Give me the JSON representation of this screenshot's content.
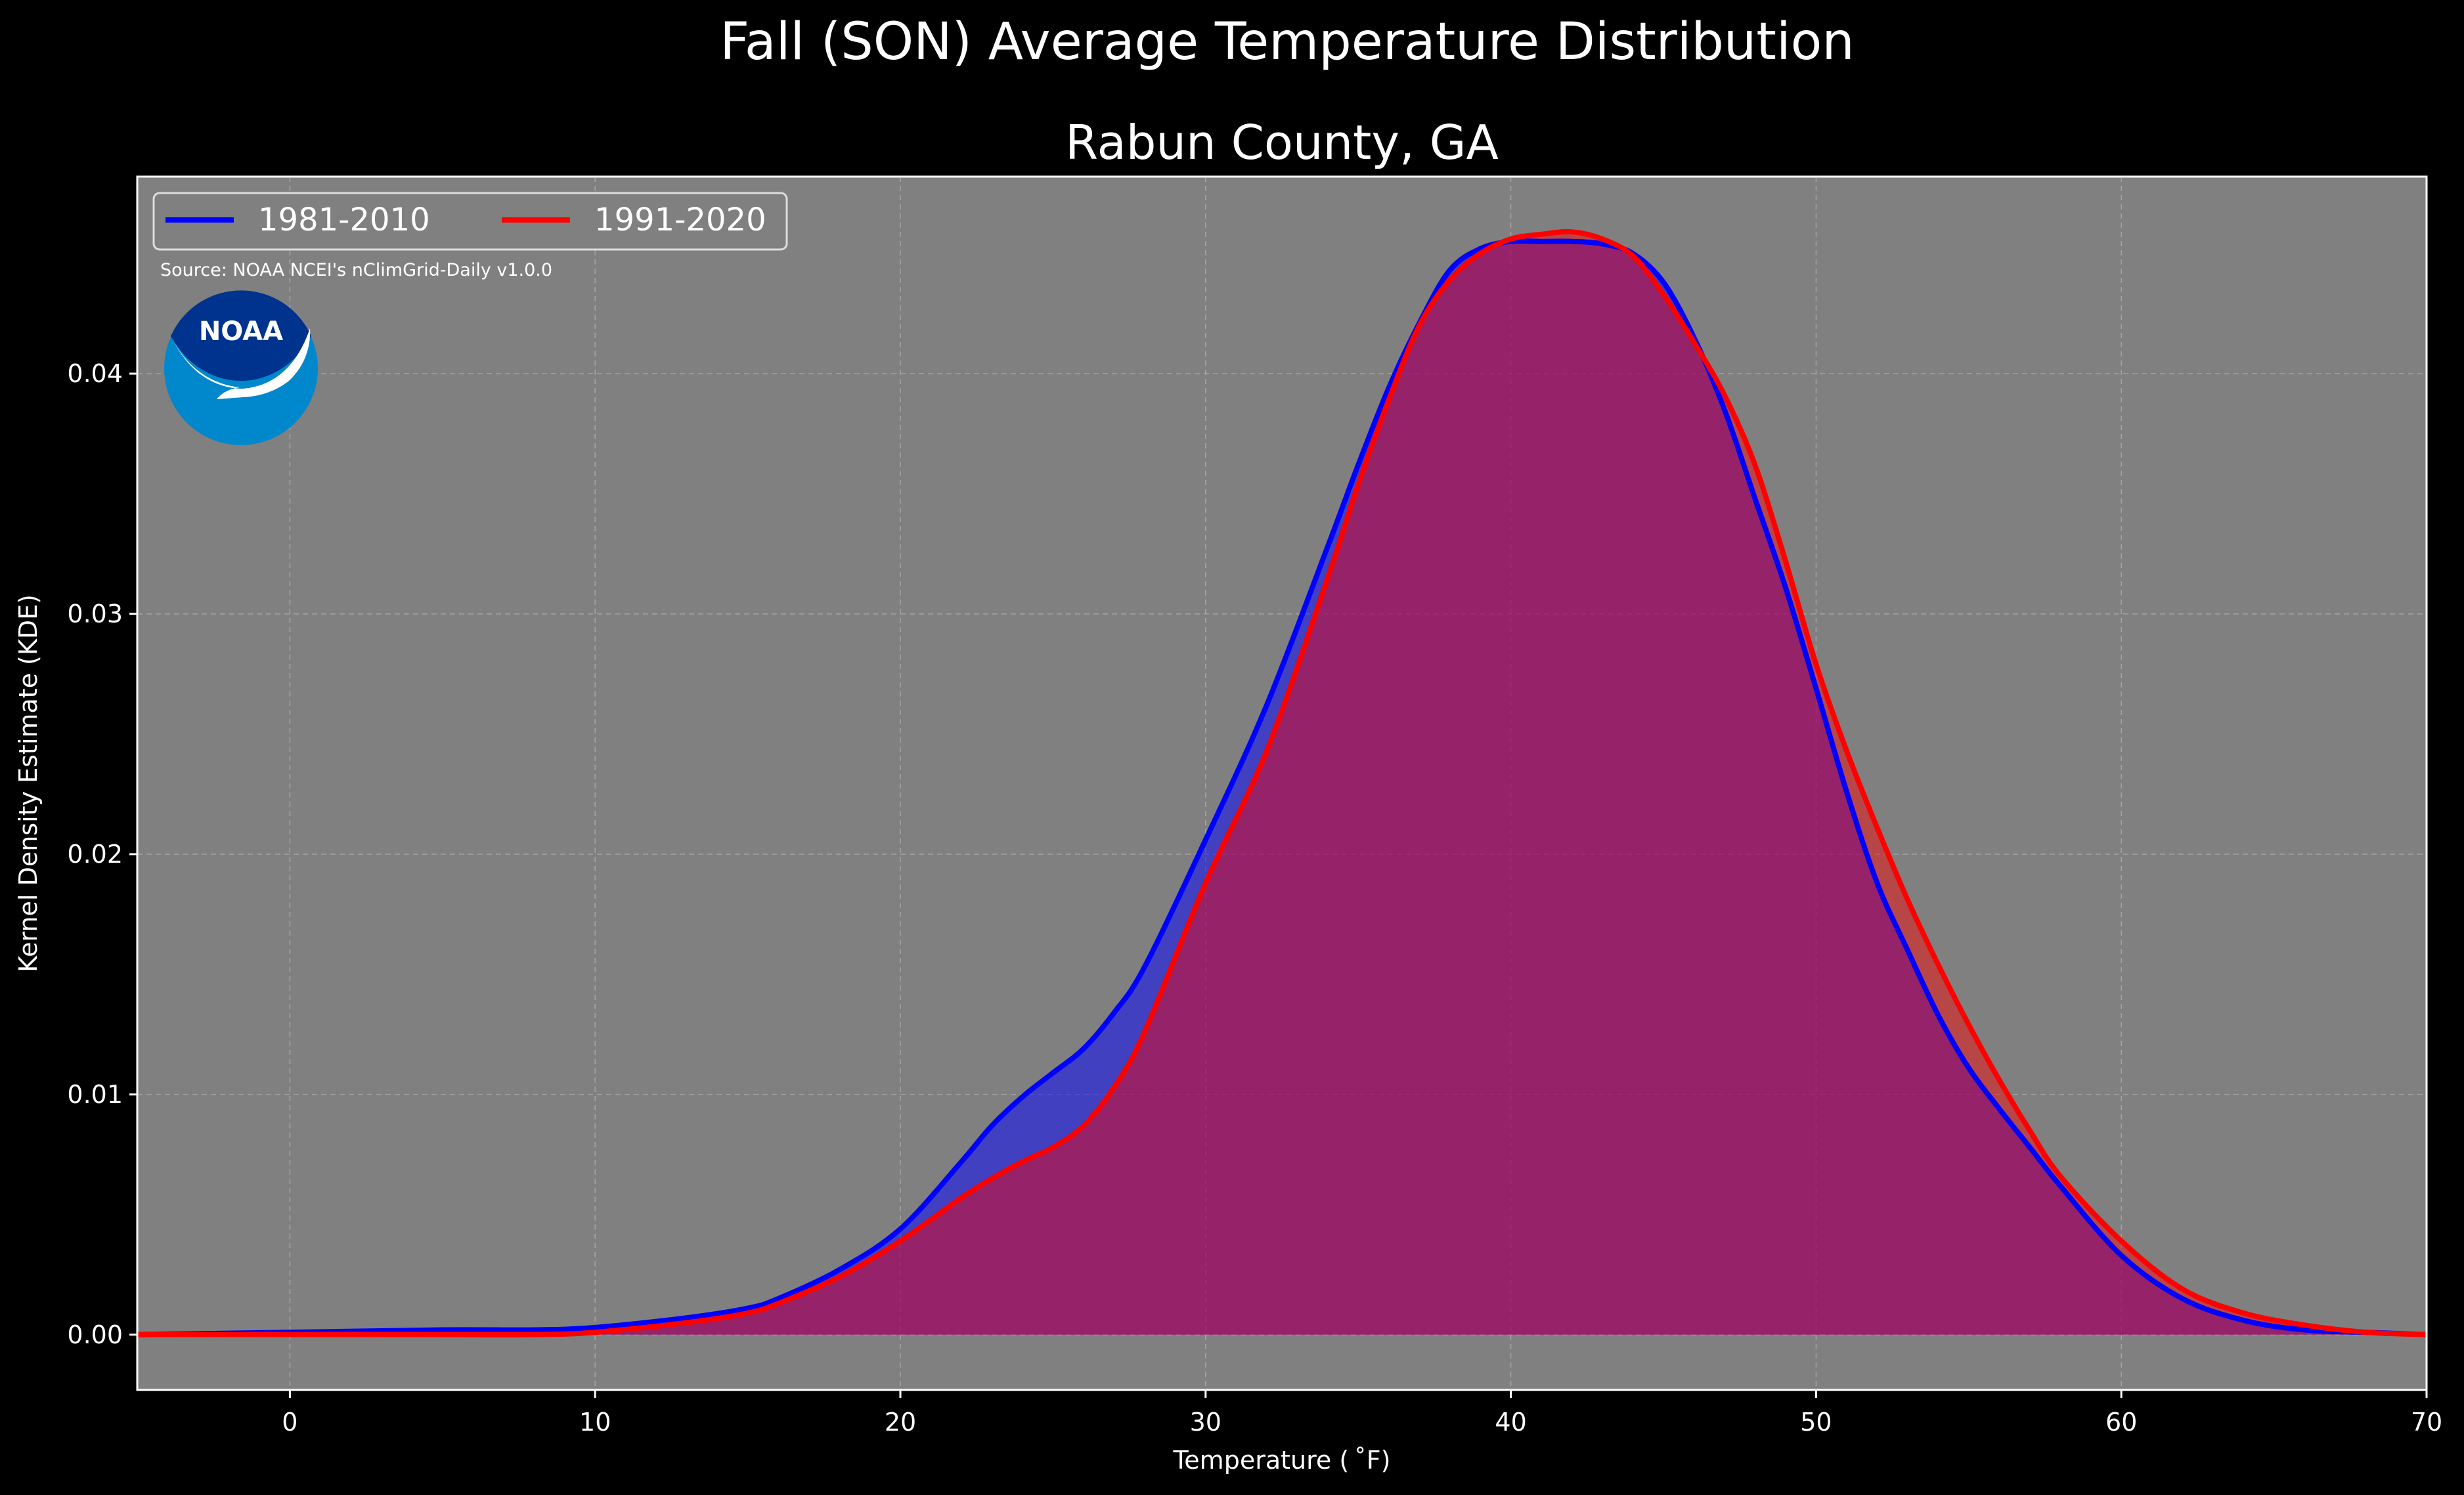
{
  "chart_data": {
    "type": "area",
    "suptitle": "Fall (SON) Average Temperature Distribution",
    "title": "Rabun County, GA",
    "xlabel": "Temperature ($^\\circ$F)",
    "xlabel_display": "Temperature ( ˚F)",
    "ylabel": "Kernel Density Estimate (KDE)",
    "xlim": [
      -5,
      70
    ],
    "ylim": [
      -0.0023,
      0.0482
    ],
    "x_ticks": [
      0,
      10,
      20,
      30,
      40,
      50,
      60,
      70
    ],
    "x_tick_labels": [
      "0",
      "10",
      "20",
      "30",
      "40",
      "50",
      "60",
      "70"
    ],
    "y_ticks": [
      0.0,
      0.01,
      0.02,
      0.03,
      0.04
    ],
    "y_tick_labels": [
      "0.00",
      "0.01",
      "0.02",
      "0.03",
      "0.04"
    ],
    "grid": true,
    "legend_position": "top-left",
    "source_note": "Source: NOAA NCEI's nClimGrid-Daily v1.0.0",
    "logo_text": "NOAA",
    "colors": {
      "background": "#000000",
      "axes_background": "#808080",
      "text": "#ffffff",
      "grid": "#b4b4b4",
      "series_1981_2010": "#0000ff",
      "series_1991_2020": "#ff0000"
    },
    "x": [
      -5,
      0,
      5,
      8,
      10,
      13,
      15,
      16,
      18,
      20,
      22,
      23,
      24,
      25,
      26,
      27,
      28,
      30,
      32,
      34,
      35,
      36,
      37,
      38,
      39,
      40,
      41,
      42,
      43,
      44,
      45,
      46,
      47,
      48,
      49,
      50,
      51,
      52,
      53,
      54,
      55,
      56,
      57,
      58,
      60,
      62,
      64,
      66,
      68,
      70
    ],
    "series": [
      {
        "name": "1981-2010",
        "color": "#0000ff",
        "values": [
          0.0,
          0.0001,
          0.0002,
          0.0002,
          0.0003,
          0.0007,
          0.0011,
          0.0015,
          0.0027,
          0.0044,
          0.0072,
          0.0087,
          0.0099,
          0.0109,
          0.0119,
          0.0134,
          0.0153,
          0.0206,
          0.0262,
          0.0328,
          0.0362,
          0.0394,
          0.0421,
          0.0443,
          0.0452,
          0.0455,
          0.0455,
          0.0455,
          0.0454,
          0.045,
          0.0438,
          0.0415,
          0.0385,
          0.0348,
          0.0311,
          0.0269,
          0.0226,
          0.0188,
          0.016,
          0.0133,
          0.0111,
          0.0094,
          0.0078,
          0.0062,
          0.0033,
          0.0015,
          0.0006,
          0.0002,
          0.0001,
          0.0
        ]
      },
      {
        "name": "1991-2020",
        "color": "#ff0000",
        "values": [
          0.0,
          0.0,
          0.0,
          0.0,
          0.0001,
          0.0005,
          0.0009,
          0.0013,
          0.0024,
          0.0039,
          0.0057,
          0.0065,
          0.0072,
          0.0078,
          0.0087,
          0.0103,
          0.0126,
          0.0188,
          0.0243,
          0.0315,
          0.0354,
          0.0389,
          0.042,
          0.0439,
          0.045,
          0.0456,
          0.0458,
          0.0459,
          0.0456,
          0.0449,
          0.0433,
          0.0413,
          0.0391,
          0.0362,
          0.0322,
          0.0279,
          0.0243,
          0.0211,
          0.0181,
          0.0154,
          0.0129,
          0.0106,
          0.0085,
          0.0066,
          0.0039,
          0.0019,
          0.0009,
          0.0004,
          0.0001,
          0.0
        ]
      }
    ]
  }
}
